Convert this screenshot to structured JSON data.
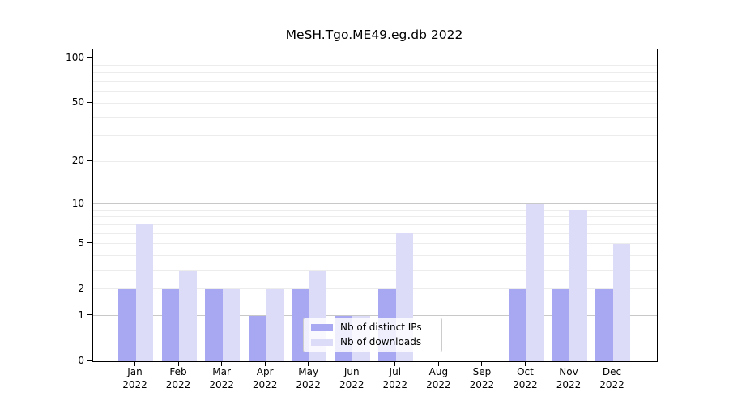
{
  "chart_data": {
    "type": "bar",
    "title": "MeSH.Tgo.ME49.eg.db 2022",
    "categories": [
      "Jan",
      "Feb",
      "Mar",
      "Apr",
      "May",
      "Jun",
      "Jul",
      "Aug",
      "Sep",
      "Oct",
      "Nov",
      "Dec"
    ],
    "x_tick_year": "2022",
    "series": [
      {
        "name": "Nb of distinct IPs",
        "color": "#a8a8f2",
        "values": [
          2,
          2,
          2,
          1,
          2,
          1,
          2,
          0,
          0,
          2,
          2,
          2
        ]
      },
      {
        "name": "Nb of downloads",
        "color": "#dcdcf9",
        "values": [
          7,
          3,
          2,
          2,
          3,
          1,
          6,
          0,
          0,
          10,
          9,
          5
        ]
      }
    ],
    "xlabel": "",
    "ylabel": "",
    "y_scale": "log1p",
    "ylim": [
      0,
      115
    ],
    "y_tick_labels": [
      0,
      1,
      2,
      5,
      10,
      20,
      50,
      100
    ],
    "y_major_gridlines": [
      1,
      10,
      100
    ],
    "y_minor_gridlines": [
      2,
      3,
      4,
      5,
      6,
      7,
      8,
      9,
      20,
      30,
      40,
      50,
      60,
      70,
      80,
      90
    ],
    "grid": true,
    "legend_position": "lower center"
  }
}
